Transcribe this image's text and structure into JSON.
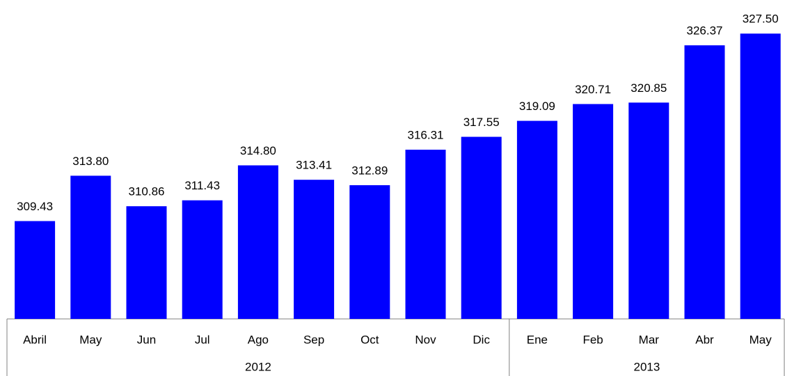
{
  "chart_data": {
    "type": "bar",
    "color": "#0000ff",
    "ylim": [
      300,
      330
    ],
    "groups": [
      {
        "name": "2012",
        "categories": [
          "Abril",
          "May",
          "Jun",
          "Jul",
          "Ago",
          "Sep",
          "Oct",
          "Nov",
          "Dic"
        ],
        "values": [
          309.43,
          313.8,
          310.86,
          311.43,
          314.8,
          313.41,
          312.89,
          316.31,
          317.55
        ],
        "value_labels": [
          "309.43",
          "313.80",
          "310.86",
          "311.43",
          "314.80",
          "313.41",
          "312.89",
          "316.31",
          "317.55"
        ]
      },
      {
        "name": "2013",
        "categories": [
          "Ene",
          "Feb",
          "Mar",
          "Abr",
          "May"
        ],
        "values": [
          319.09,
          320.71,
          320.85,
          326.37,
          327.5
        ],
        "value_labels": [
          "319.09",
          "320.71",
          "320.85",
          "326.37",
          "327.50"
        ]
      }
    ]
  }
}
